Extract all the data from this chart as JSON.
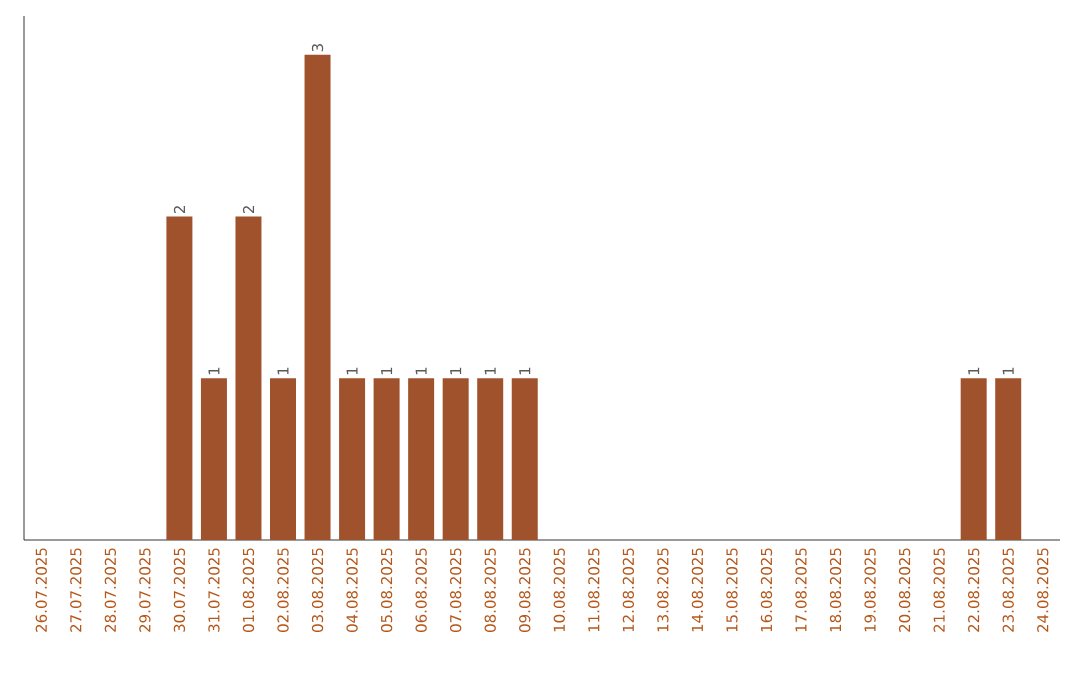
{
  "chart_data": {
    "type": "bar",
    "categories": [
      "26.07.2025",
      "27.07.2025",
      "28.07.2025",
      "29.07.2025",
      "30.07.2025",
      "31.07.2025",
      "01.08.2025",
      "02.08.2025",
      "03.08.2025",
      "04.08.2025",
      "05.08.2025",
      "06.08.2025",
      "07.08.2025",
      "08.08.2025",
      "09.08.2025",
      "10.08.2025",
      "11.08.2025",
      "12.08.2025",
      "13.08.2025",
      "14.08.2025",
      "15.08.2025",
      "16.08.2025",
      "17.08.2025",
      "18.08.2025",
      "19.08.2025",
      "20.08.2025",
      "21.08.2025",
      "22.08.2025",
      "23.08.2025",
      "24.08.2025"
    ],
    "values": [
      0,
      0,
      0,
      0,
      2,
      1,
      2,
      1,
      3,
      1,
      1,
      1,
      1,
      1,
      1,
      0,
      0,
      0,
      0,
      0,
      0,
      0,
      0,
      0,
      0,
      0,
      0,
      1,
      1,
      0
    ],
    "value_labels": [
      null,
      null,
      null,
      null,
      "2",
      "1",
      "2",
      "1",
      "3",
      "1",
      "1",
      "1",
      "1",
      "1",
      "1",
      null,
      null,
      null,
      null,
      null,
      null,
      null,
      null,
      null,
      null,
      null,
      null,
      "1",
      "1",
      null
    ],
    "color": "#a0522d"
  }
}
